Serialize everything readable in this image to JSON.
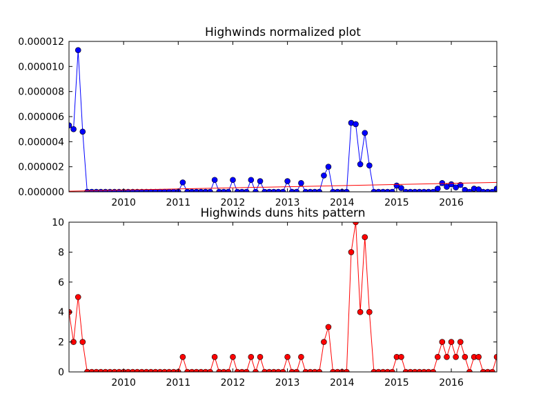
{
  "chart_data": [
    {
      "type": "line",
      "title": "Highwinds normalized plot",
      "xlabel": "",
      "ylabel": "",
      "xlim": [
        2009.0,
        2016.833
      ],
      "ylim": [
        0,
        1.2e-05
      ],
      "x_tick_values": [
        2010,
        2011,
        2012,
        2013,
        2014,
        2015,
        2016
      ],
      "x_tick_labels": [
        "2010",
        "2011",
        "2012",
        "2013",
        "2014",
        "2015",
        "2016"
      ],
      "y_tick_values": [
        0,
        2e-06,
        4e-06,
        6e-06,
        8e-06,
        1e-05,
        1.2e-05
      ],
      "y_tick_labels": [
        "0.000000",
        "0.000002",
        "0.000004",
        "0.000006",
        "0.000008",
        "0.000010",
        "0.000012"
      ],
      "grid": false,
      "series": [
        {
          "color": "#0000ff",
          "marker": "circle",
          "x": [
            2009.0,
            2009.083,
            2009.167,
            2009.25,
            2009.333,
            2009.417,
            2009.5,
            2009.583,
            2009.667,
            2009.75,
            2009.833,
            2009.917,
            2010.0,
            2010.083,
            2010.167,
            2010.25,
            2010.333,
            2010.417,
            2010.5,
            2010.583,
            2010.667,
            2010.75,
            2010.833,
            2010.917,
            2011.0,
            2011.083,
            2011.167,
            2011.25,
            2011.333,
            2011.417,
            2011.5,
            2011.583,
            2011.667,
            2011.75,
            2011.833,
            2011.917,
            2012.0,
            2012.083,
            2012.167,
            2012.25,
            2012.333,
            2012.417,
            2012.5,
            2012.583,
            2012.667,
            2012.75,
            2012.833,
            2012.917,
            2013.0,
            2013.083,
            2013.167,
            2013.25,
            2013.333,
            2013.417,
            2013.5,
            2013.583,
            2013.667,
            2013.75,
            2013.833,
            2013.917,
            2014.0,
            2014.083,
            2014.167,
            2014.25,
            2014.333,
            2014.417,
            2014.5,
            2014.583,
            2014.667,
            2014.75,
            2014.833,
            2014.917,
            2015.0,
            2015.083,
            2015.167,
            2015.25,
            2015.333,
            2015.417,
            2015.5,
            2015.583,
            2015.667,
            2015.75,
            2015.833,
            2015.917,
            2016.0,
            2016.083,
            2016.167,
            2016.25,
            2016.333,
            2016.417,
            2016.5,
            2016.583,
            2016.667,
            2016.75,
            2016.833
          ],
          "values": [
            5.3e-06,
            5e-06,
            1.13e-05,
            4.8e-06,
            0,
            0,
            0,
            0,
            0,
            0,
            0,
            0,
            0,
            0,
            0,
            0,
            0,
            0,
            0,
            0,
            0,
            0,
            0,
            0,
            0,
            7.5e-07,
            0,
            0,
            0,
            0,
            0,
            0,
            9.5e-07,
            0,
            0,
            0,
            9.5e-07,
            0,
            0,
            0,
            9.5e-07,
            0,
            8.5e-07,
            0,
            0,
            0,
            0,
            0,
            8.5e-07,
            0,
            0,
            7e-07,
            0,
            0,
            0,
            0,
            1.3e-06,
            2e-06,
            0,
            0,
            0,
            0,
            5.5e-06,
            5.4e-06,
            2.2e-06,
            4.7e-06,
            2.1e-06,
            0,
            0,
            0,
            0,
            0,
            5e-07,
            3e-07,
            0,
            0,
            0,
            0,
            0,
            0,
            0,
            2.5e-07,
            7e-07,
            4e-07,
            6e-07,
            3.5e-07,
            5.5e-07,
            1.5e-07,
            0,
            2.5e-07,
            2e-07,
            0,
            0,
            0,
            2.5e-07
          ]
        },
        {
          "color": "#ff0000",
          "marker": "none",
          "x": [
            2009.0,
            2016.833
          ],
          "values": [
            5e-08,
            7.5e-07
          ]
        }
      ]
    },
    {
      "type": "line",
      "title": "Highwinds duns hits pattern",
      "xlabel": "",
      "ylabel": "",
      "xlim": [
        2009.0,
        2016.833
      ],
      "ylim": [
        0,
        10
      ],
      "x_tick_values": [
        2010,
        2011,
        2012,
        2013,
        2014,
        2015,
        2016
      ],
      "x_tick_labels": [
        "2010",
        "2011",
        "2012",
        "2013",
        "2014",
        "2015",
        "2016"
      ],
      "y_tick_values": [
        0,
        2,
        4,
        6,
        8,
        10
      ],
      "y_tick_labels": [
        "0",
        "2",
        "4",
        "6",
        "8",
        "10"
      ],
      "grid": false,
      "series": [
        {
          "color": "#ff0000",
          "marker": "circle",
          "x": [
            2009.0,
            2009.083,
            2009.167,
            2009.25,
            2009.333,
            2009.417,
            2009.5,
            2009.583,
            2009.667,
            2009.75,
            2009.833,
            2009.917,
            2010.0,
            2010.083,
            2010.167,
            2010.25,
            2010.333,
            2010.417,
            2010.5,
            2010.583,
            2010.667,
            2010.75,
            2010.833,
            2010.917,
            2011.0,
            2011.083,
            2011.167,
            2011.25,
            2011.333,
            2011.417,
            2011.5,
            2011.583,
            2011.667,
            2011.75,
            2011.833,
            2011.917,
            2012.0,
            2012.083,
            2012.167,
            2012.25,
            2012.333,
            2012.417,
            2012.5,
            2012.583,
            2012.667,
            2012.75,
            2012.833,
            2012.917,
            2013.0,
            2013.083,
            2013.167,
            2013.25,
            2013.333,
            2013.417,
            2013.5,
            2013.583,
            2013.667,
            2013.75,
            2013.833,
            2013.917,
            2014.0,
            2014.083,
            2014.167,
            2014.25,
            2014.333,
            2014.417,
            2014.5,
            2014.583,
            2014.667,
            2014.75,
            2014.833,
            2014.917,
            2015.0,
            2015.083,
            2015.167,
            2015.25,
            2015.333,
            2015.417,
            2015.5,
            2015.583,
            2015.667,
            2015.75,
            2015.833,
            2015.917,
            2016.0,
            2016.083,
            2016.167,
            2016.25,
            2016.333,
            2016.417,
            2016.5,
            2016.583,
            2016.667,
            2016.75,
            2016.833
          ],
          "values": [
            4,
            2,
            5,
            2,
            0,
            0,
            0,
            0,
            0,
            0,
            0,
            0,
            0,
            0,
            0,
            0,
            0,
            0,
            0,
            0,
            0,
            0,
            0,
            0,
            0,
            1,
            0,
            0,
            0,
            0,
            0,
            0,
            1,
            0,
            0,
            0,
            1,
            0,
            0,
            0,
            1,
            0,
            1,
            0,
            0,
            0,
            0,
            0,
            1,
            0,
            0,
            1,
            0,
            0,
            0,
            0,
            2,
            3,
            0,
            0,
            0,
            0,
            8,
            10,
            4,
            9,
            4,
            0,
            0,
            0,
            0,
            0,
            1,
            1,
            0,
            0,
            0,
            0,
            0,
            0,
            0,
            1,
            2,
            1,
            2,
            1,
            2,
            1,
            0,
            1,
            1,
            0,
            0,
            0,
            1
          ]
        }
      ]
    }
  ]
}
